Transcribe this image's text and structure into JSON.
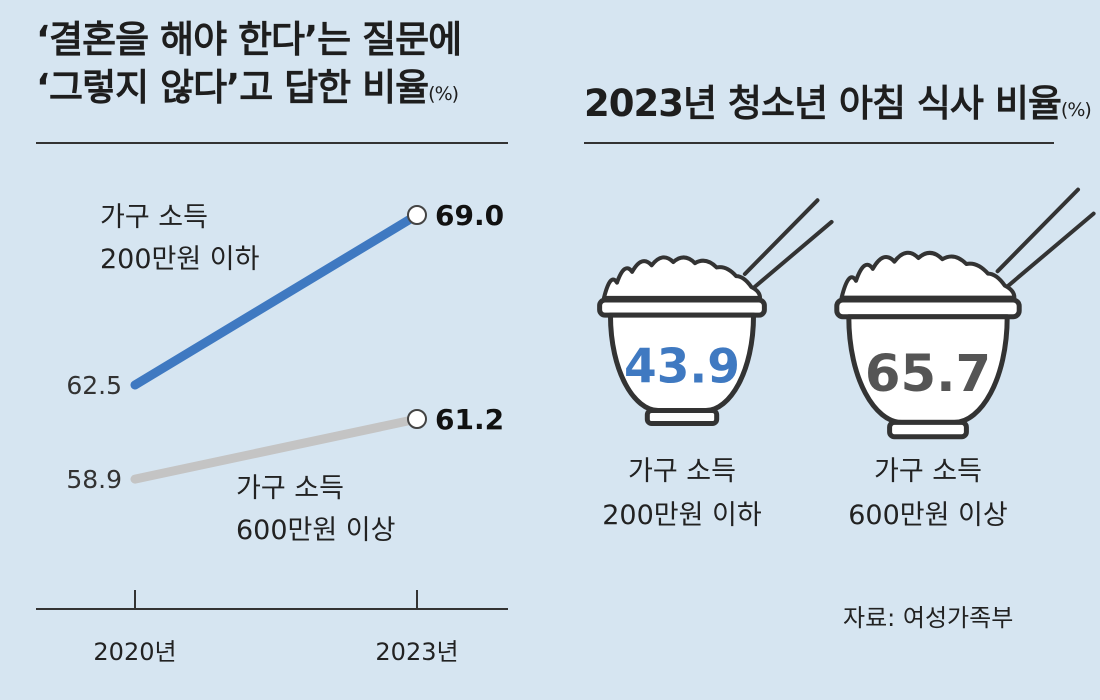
{
  "left_panel": {
    "title_line1": "‘결혼을 해야 한다’는 질문에",
    "title_line2": "‘그렇지 않다’고 답한 비율",
    "unit": "(%)"
  },
  "right_panel": {
    "title": "2023년 청소년 아침 식사 비율",
    "unit": "(%)"
  },
  "source": "자료: 여성가족부",
  "colors": {
    "low_income": "#3f79c1",
    "high_income": "#c4c4c4",
    "background": "#d6e5f1"
  },
  "chart_data": [
    {
      "type": "line",
      "title": "‘결혼을 해야 한다’는 질문에 ‘그렇지 않다’고 답한 비율(%)",
      "x": [
        "2020년",
        "2023년"
      ],
      "series": [
        {
          "name": "가구 소득 200만원 이하",
          "label_lines": [
            "가구 소득",
            "200만원 이하"
          ],
          "values": [
            62.5,
            69.0
          ],
          "value_labels": [
            "62.5",
            "69.0"
          ],
          "color": "#3f79c1"
        },
        {
          "name": "가구 소득 600만원 이상",
          "label_lines": [
            "가구 소득",
            "600만원 이상"
          ],
          "values": [
            58.9,
            61.2
          ],
          "value_labels": [
            "58.9",
            "61.2"
          ],
          "color": "#c4c4c4"
        }
      ]
    },
    {
      "type": "bar",
      "title": "2023년 청소년 아침 식사 비율(%)",
      "categories": [
        "가구 소득 200만원 이하",
        "가구 소득 600만원 이상"
      ],
      "category_lines": [
        [
          "가구 소득",
          "200만원 이하"
        ],
        [
          "가구 소득",
          "600만원 이상"
        ]
      ],
      "values": [
        43.9,
        65.7
      ],
      "value_labels": [
        "43.9",
        "65.7"
      ],
      "value_colors": [
        "#3f79c1",
        "#555555"
      ]
    }
  ]
}
